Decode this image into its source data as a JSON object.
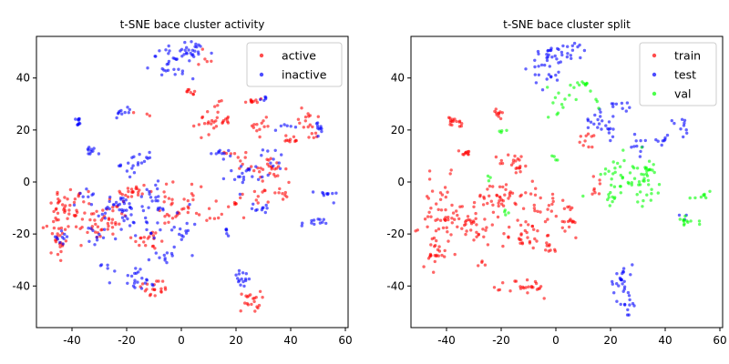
{
  "colors": {
    "red": "#ff0000",
    "blue": "#0000ff",
    "green": "#00ff00"
  },
  "chart_data": [
    {
      "type": "scatter",
      "title": "t-SNE bace cluster activity",
      "xlabel": "",
      "ylabel": "",
      "xlim": [
        -53,
        61
      ],
      "ylim": [
        -56,
        56
      ],
      "xticks": [
        -40,
        -20,
        0,
        20,
        40,
        60
      ],
      "yticks": [
        -40,
        -20,
        0,
        20,
        40
      ],
      "legend": "top-right",
      "series": [
        {
          "name": "active",
          "color": "#ff0000",
          "clusters": [
            [
              -45,
              -20,
              3,
              6,
              35
            ],
            [
              -40,
              -8,
              4,
              3,
              30
            ],
            [
              -33,
              -16,
              3,
              3,
              22
            ],
            [
              -26,
              -14,
              3,
              5,
              25
            ],
            [
              -18,
              -4,
              3,
              2,
              22
            ],
            [
              -12,
              -22,
              3,
              2,
              18
            ],
            [
              -10,
              -41,
              3,
              2,
              20
            ],
            [
              -4,
              -6,
              2,
              4,
              12
            ],
            [
              -3,
              -13,
              2,
              2,
              10
            ],
            [
              4,
              -8,
              2,
              5,
              12
            ],
            [
              2,
              34,
              2,
              1,
              8
            ],
            [
              12,
              24,
              3,
              3,
              30
            ],
            [
              20,
              9,
              2,
              2,
              10
            ],
            [
              10,
              -12,
              2,
              2,
              8
            ],
            [
              26,
              31,
              2,
              1,
              10
            ],
            [
              30,
              22,
              2,
              3,
              12
            ],
            [
              32,
              5,
              3,
              2,
              25
            ],
            [
              37,
              -2,
              2,
              3,
              10
            ],
            [
              40,
              16,
              2,
              1,
              10
            ],
            [
              47,
              25,
              2,
              2,
              10
            ],
            [
              48,
              20,
              1,
              2,
              8
            ],
            [
              25,
              -46,
              2,
              2,
              20
            ],
            [
              28,
              -6,
              2,
              2,
              8
            ],
            [
              21,
              -8,
              2,
              2,
              8
            ],
            [
              8,
              46,
              2,
              2,
              5
            ],
            [
              -14,
              27,
              2,
              1,
              3
            ]
          ]
        },
        {
          "name": "inactive",
          "color": "#0000ff",
          "clusters": [
            [
              -38,
              23,
              1,
              1,
              10
            ],
            [
              -33,
              12,
              1,
              1,
              10
            ],
            [
              -22,
              27,
              2,
              1,
              10
            ],
            [
              -16,
              7,
              3,
              2,
              20
            ],
            [
              -3,
              46,
              4,
              3,
              30
            ],
            [
              4,
              50,
              4,
              2,
              22
            ],
            [
              -22,
              -10,
              4,
              3,
              30
            ],
            [
              -12,
              -14,
              5,
              4,
              30
            ],
            [
              -30,
              -20,
              3,
              3,
              12
            ],
            [
              -20,
              -35,
              3,
              2,
              10
            ],
            [
              -28,
              -32,
              1,
              1,
              4
            ],
            [
              -15,
              -39,
              3,
              1,
              12
            ],
            [
              -5,
              -28,
              3,
              2,
              12
            ],
            [
              2,
              -19,
              2,
              2,
              10
            ],
            [
              15,
              11,
              2,
              1,
              10
            ],
            [
              23,
              3,
              3,
              2,
              20
            ],
            [
              34,
              9,
              2,
              2,
              10
            ],
            [
              30,
              -10,
              2,
              1,
              10
            ],
            [
              48,
              -16,
              2,
              1,
              12
            ],
            [
              50,
              20,
              1,
              2,
              10
            ],
            [
              53,
              -5,
              2,
              1,
              10
            ],
            [
              22,
              -37,
              2,
              2,
              15
            ],
            [
              -44,
              -22,
              2,
              2,
              10
            ],
            [
              -10,
              -4,
              2,
              2,
              12
            ],
            [
              17,
              -20,
              1,
              1,
              5
            ],
            [
              30,
              32,
              2,
              1,
              5
            ],
            [
              38,
              22,
              2,
              1,
              6
            ],
            [
              -35,
              -5,
              2,
              2,
              8
            ]
          ]
        }
      ]
    },
    {
      "type": "scatter",
      "title": "t-SNE bace cluster split",
      "xlabel": "",
      "ylabel": "",
      "xlim": [
        -53,
        61
      ],
      "ylim": [
        -56,
        56
      ],
      "xticks": [
        -40,
        -20,
        0,
        20,
        40,
        60
      ],
      "yticks": [
        -40,
        -20,
        0,
        20,
        40
      ],
      "legend": "top-right",
      "series": [
        {
          "name": "train",
          "color": "#ff0000",
          "clusters": [
            [
              -42,
              -15,
              4,
              8,
              60
            ],
            [
              -38,
              23,
              1,
              1,
              10
            ],
            [
              -33,
              11,
              1,
              1,
              10
            ],
            [
              -22,
              27,
              2,
              1,
              10
            ],
            [
              -30,
              -16,
              4,
              4,
              35
            ],
            [
              -20,
              -5,
              4,
              3,
              40
            ],
            [
              -15,
              7,
              3,
              2,
              20
            ],
            [
              -12,
              -20,
              4,
              3,
              30
            ],
            [
              -10,
              -41,
              4,
              2,
              25
            ],
            [
              -5,
              -8,
              3,
              4,
              20
            ],
            [
              -3,
              -25,
              2,
              2,
              10
            ],
            [
              4,
              -15,
              3,
              4,
              20
            ],
            [
              12,
              16,
              2,
              2,
              10
            ],
            [
              15,
              -2,
              2,
              2,
              8
            ],
            [
              -35,
              23,
              1,
              1,
              6
            ],
            [
              -26,
              -32,
              1,
              1,
              4
            ],
            [
              -44,
              -27,
              2,
              2,
              15
            ]
          ]
        },
        {
          "name": "test",
          "color": "#0000ff",
          "clusters": [
            [
              -3,
              44,
              3,
              4,
              30
            ],
            [
              4,
              50,
              4,
              2,
              22
            ],
            [
              15,
              25,
              2,
              3,
              15
            ],
            [
              20,
              20,
              1,
              2,
              8
            ],
            [
              25,
              30,
              2,
              2,
              10
            ],
            [
              30,
              14,
              2,
              2,
              10
            ],
            [
              38,
              16,
              2,
              1,
              8
            ],
            [
              46,
              22,
              2,
              2,
              10
            ],
            [
              24,
              -38,
              2,
              4,
              25
            ],
            [
              27,
              -47,
              1,
              2,
              10
            ],
            [
              47,
              -14,
              1,
              1,
              3
            ]
          ]
        },
        {
          "name": "val",
          "color": "#00ff00",
          "clusters": [
            [
              1,
              30,
              2,
              4,
              12
            ],
            [
              9,
              38,
              2,
              1,
              10
            ],
            [
              15,
              33,
              1,
              2,
              4
            ],
            [
              26,
              3,
              5,
              4,
              35
            ],
            [
              34,
              5,
              2,
              2,
              15
            ],
            [
              32,
              -5,
              3,
              3,
              15
            ],
            [
              20,
              -6,
              1,
              2,
              10
            ],
            [
              48,
              -15,
              2,
              1,
              12
            ],
            [
              53,
              -5,
              2,
              1,
              8
            ],
            [
              -20,
              20,
              1,
              1,
              4
            ],
            [
              0,
              10,
              1,
              1,
              4
            ],
            [
              -25,
              0,
              1,
              1,
              3
            ],
            [
              -18,
              -12,
              1,
              1,
              4
            ]
          ]
        }
      ]
    }
  ]
}
